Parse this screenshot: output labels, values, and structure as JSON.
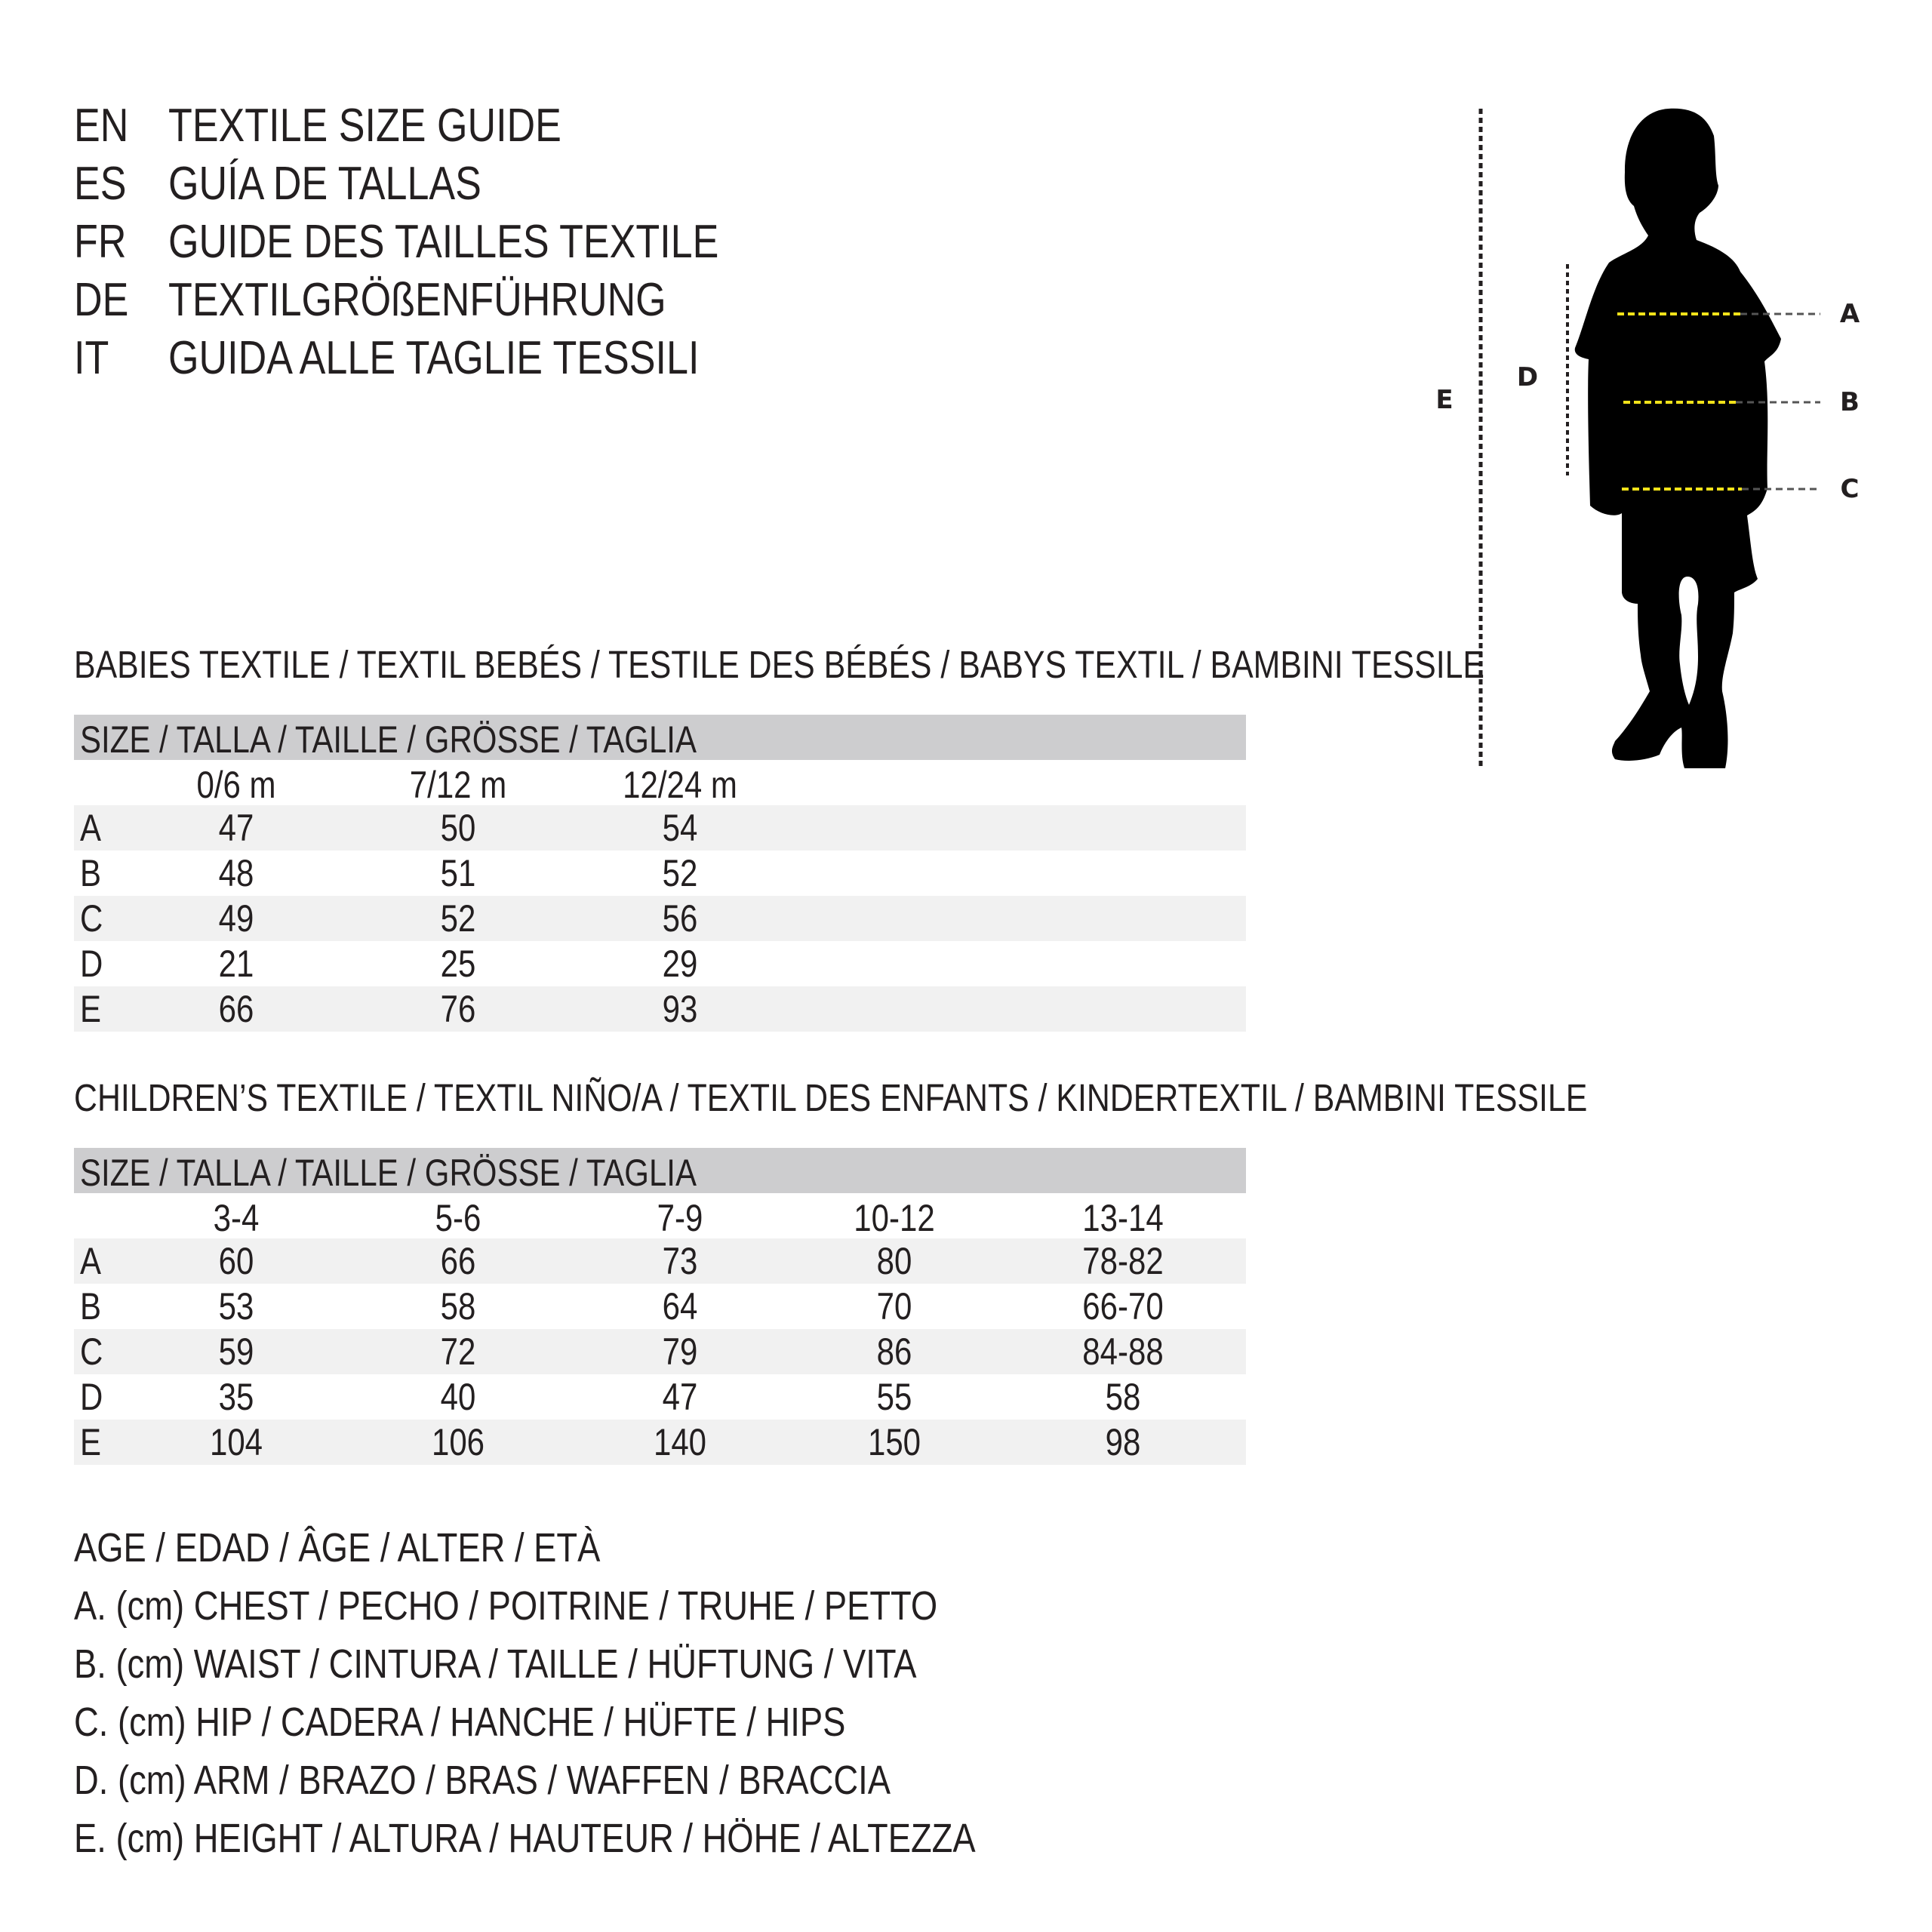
{
  "header": {
    "lines": [
      {
        "code": "EN",
        "text": "TEXTILE SIZE GUIDE"
      },
      {
        "code": "ES",
        "text": "GUÍA DE TALLAS"
      },
      {
        "code": "FR",
        "text": "GUIDE DES TAILLES TEXTILE"
      },
      {
        "code": "DE",
        "text": "TEXTILGRÖßENFÜHRUNG"
      },
      {
        "code": "IT",
        "text": "GUIDA ALLE TAGLIE TESSILI"
      }
    ]
  },
  "babies": {
    "title": "BABIES TEXTILE / TEXTIL BEBÉS / TESTILE DES BÉBÉS / BABYS TEXTIL / BAMBINI TESSILE",
    "size_header": "SIZE / TALLA / TAILLE / GRÖSSE / TAGLIA",
    "columns": [
      "0/6 m",
      "7/12 m",
      "12/24 m"
    ],
    "rows": [
      {
        "label": "A",
        "values": [
          "47",
          "50",
          "54"
        ]
      },
      {
        "label": "B",
        "values": [
          "48",
          "51",
          "52"
        ]
      },
      {
        "label": "C",
        "values": [
          "49",
          "52",
          "56"
        ]
      },
      {
        "label": "D",
        "values": [
          "21",
          "25",
          "29"
        ]
      },
      {
        "label": "E",
        "values": [
          "66",
          "76",
          "93"
        ]
      }
    ]
  },
  "children": {
    "title": "CHILDREN’S TEXTILE / TEXTIL NIÑO/A / TEXTIL DES ENFANTS / KINDERTEXTIL / BAMBINI TESSILE",
    "size_header": "SIZE / TALLA / TAILLE / GRÖSSE / TAGLIA",
    "columns": [
      "3-4",
      "5-6",
      "7-9",
      "10-12",
      "13-14"
    ],
    "rows": [
      {
        "label": "A",
        "values": [
          "60",
          "66",
          "73",
          "80",
          "78-82"
        ]
      },
      {
        "label": "B",
        "values": [
          "53",
          "58",
          "64",
          "70",
          "66-70"
        ]
      },
      {
        "label": "C",
        "values": [
          "59",
          "72",
          "79",
          "86",
          "84-88"
        ]
      },
      {
        "label": "D",
        "values": [
          "35",
          "40",
          "47",
          "55",
          "58"
        ]
      },
      {
        "label": "E",
        "values": [
          "104",
          "106",
          "140",
          "150",
          "98"
        ]
      }
    ]
  },
  "legend": [
    "AGE / EDAD / ÂGE / ALTER / ETÀ",
    "A. (cm) CHEST / PECHO / POITRINE / TRUHE / PETTO",
    "B. (cm) WAIST / CINTURA / TAILLE / HÜFTUNG / VITA",
    "C. (cm) HIP / CADERA / HANCHE / HÜFTE / HIPS",
    "D. (cm) ARM / BRAZO / BRAS / WAFFEN / BRACCIA",
    "E. (cm) HEIGHT / ALTURA / HAUTEUR / HÖHE / ALTEZZA"
  ],
  "figure": {
    "labels": {
      "A": "A",
      "B": "B",
      "C": "C",
      "D": "D",
      "E": "E"
    },
    "silhouette_color": "#000000",
    "measure_line_color": "#f2e21a",
    "guide_line_color": "#231f20"
  }
}
